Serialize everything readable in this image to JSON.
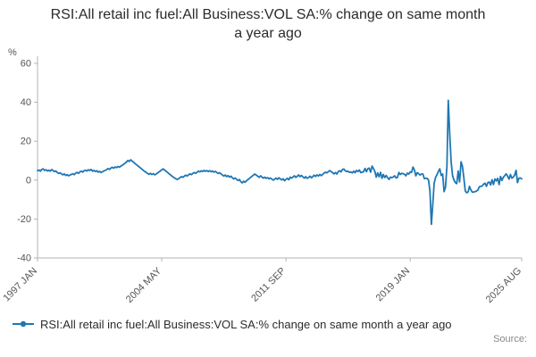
{
  "title": "RSI:All retail inc fuel:All Business:VOL SA:% change on same month a year ago",
  "legend": {
    "label": "RSI:All retail inc fuel:All Business:VOL SA:% change on same month a year ago"
  },
  "footer": {
    "source_label": "Source:"
  },
  "colors": {
    "accent": "#1f77b4",
    "axis": "#b3b3b3",
    "tick_text": "#555555"
  },
  "chart_data": {
    "type": "line",
    "title": "RSI:All retail inc fuel:All Business:VOL SA:% change on same month a year ago",
    "xlabel": "",
    "ylabel": "%",
    "ylim": [
      -40,
      60
    ],
    "yticks": [
      60,
      40,
      20,
      0,
      -20,
      -40
    ],
    "x_start": "1997 JAN",
    "x_end": "2025 AUG",
    "xtick_labels": [
      "1997 JAN",
      "2004 MAY",
      "2011 SEP",
      "2019 JAN",
      "2025 AUG"
    ],
    "xtick_month_index": [
      0,
      88,
      176,
      264,
      343
    ],
    "grid": false,
    "legend_position": "bottom",
    "series": [
      {
        "name": "RSI:All retail inc fuel:All Business:VOL SA:% change on same month a year ago",
        "color": "#1f77b4",
        "values": [
          4.8,
          5.2,
          4.6,
          5.5,
          5.8,
          5.0,
          5.3,
          4.7,
          5.1,
          4.6,
          5.4,
          4.9,
          4.4,
          4.7,
          3.9,
          3.4,
          3.8,
          3.1,
          2.7,
          3.2,
          2.4,
          2.8,
          2.2,
          2.6,
          2.9,
          3.3,
          2.8,
          3.6,
          4.0,
          3.5,
          4.2,
          4.6,
          4.1,
          4.8,
          5.1,
          4.7,
          5.3,
          4.9,
          5.5,
          4.6,
          5.0,
          4.4,
          4.8,
          4.1,
          4.5,
          3.9,
          4.3,
          4.7,
          5.0,
          5.4,
          5.9,
          5.5,
          6.2,
          6.6,
          6.1,
          6.8,
          6.4,
          7.0,
          6.6,
          7.2,
          7.6,
          8.1,
          8.7,
          9.3,
          10.1,
          9.6,
          10.4,
          9.8,
          9.2,
          8.6,
          8.0,
          7.4,
          6.8,
          6.2,
          5.6,
          5.0,
          4.4,
          3.9,
          3.4,
          3.0,
          3.5,
          2.9,
          3.3,
          2.7,
          3.1,
          3.6,
          4.2,
          4.7,
          5.3,
          5.8,
          5.2,
          4.6,
          4.0,
          3.4,
          2.8,
          2.2,
          1.6,
          1.1,
          0.7,
          0.3,
          0.8,
          1.3,
          1.8,
          1.4,
          2.0,
          2.5,
          2.1,
          2.7,
          3.2,
          2.8,
          3.4,
          3.9,
          3.5,
          4.1,
          4.6,
          4.2,
          4.8,
          4.4,
          5.0,
          4.5,
          4.9,
          4.4,
          4.8,
          4.3,
          4.7,
          4.1,
          4.5,
          3.9,
          3.4,
          3.8,
          3.2,
          2.6,
          2.1,
          2.6,
          1.8,
          2.3,
          1.5,
          2.0,
          1.2,
          0.6,
          1.1,
          0.4,
          -0.2,
          0.3,
          -0.8,
          -1.4,
          -0.6,
          -1.1,
          -0.3,
          0.2,
          0.8,
          1.4,
          2.0,
          2.6,
          3.1,
          2.5,
          2.0,
          1.4,
          2.2,
          1.6,
          1.0,
          1.5,
          0.9,
          1.3,
          0.7,
          1.1,
          0.5,
          0.0,
          0.5,
          1.0,
          0.4,
          1.2,
          0.6,
          0.1,
          0.7,
          -0.3,
          0.3,
          0.9,
          0.2,
          1.5,
          1.0,
          1.6,
          2.2,
          1.4,
          2.0,
          2.6,
          1.8,
          2.4,
          1.6,
          1.0,
          1.8,
          0.9,
          1.3,
          2.0,
          1.2,
          1.8,
          2.5,
          1.9,
          2.7,
          2.1,
          2.9,
          2.3,
          3.0,
          3.6,
          4.1,
          3.7,
          4.3,
          4.9,
          4.4,
          3.8,
          3.2,
          3.9,
          3.1,
          4.3,
          4.8,
          4.2,
          5.4,
          5.7,
          4.8,
          4.4,
          4.6,
          4.0,
          4.2,
          3.7,
          4.6,
          3.8,
          5.0,
          4.4,
          5.2,
          3.8,
          4.1,
          4.3,
          6.0,
          4.3,
          5.9,
          6.2,
          4.1,
          7.2,
          5.9,
          4.3,
          1.5,
          3.7,
          1.7,
          4.0,
          0.9,
          2.9,
          1.3,
          2.4,
          1.2,
          0.3,
          1.5,
          1.3,
          1.6,
          2.2,
          1.1,
          1.4,
          3.9,
          2.9,
          3.5,
          3.3,
          3.0,
          2.2,
          3.6,
          3.1,
          4.2,
          4.0,
          6.7,
          5.2,
          2.2,
          3.8,
          3.3,
          2.6,
          3.1,
          3.1,
          0.8,
          0.9,
          0.9,
          0.0,
          -5.8,
          -22.7,
          -12.9,
          -1.6,
          1.4,
          2.8,
          4.6,
          5.8,
          2.4,
          3.1,
          -5.9,
          -3.6,
          7.2,
          41.0,
          24.0,
          9.5,
          2.3,
          0.0,
          -1.3,
          -1.8,
          4.7,
          -0.9,
          9.4,
          7.2,
          1.3,
          -5.5,
          -6.5,
          -6.1,
          -3.2,
          -5.0,
          -6.2,
          -6.1,
          -5.9,
          -5.6,
          -5.1,
          -3.4,
          -3.2,
          -3.0,
          -2.1,
          -1.6,
          -3.2,
          -1.3,
          -1.0,
          -2.5,
          0.2,
          -2.3,
          0.6,
          -0.4,
          0.9,
          -2.3,
          1.9,
          -0.2,
          1.5,
          2.3,
          3.2,
          2.0,
          0.5,
          2.9,
          1.0,
          1.5,
          2.6,
          5.0,
          -1.3,
          0.9,
          1.1,
          0.7
        ]
      }
    ]
  }
}
